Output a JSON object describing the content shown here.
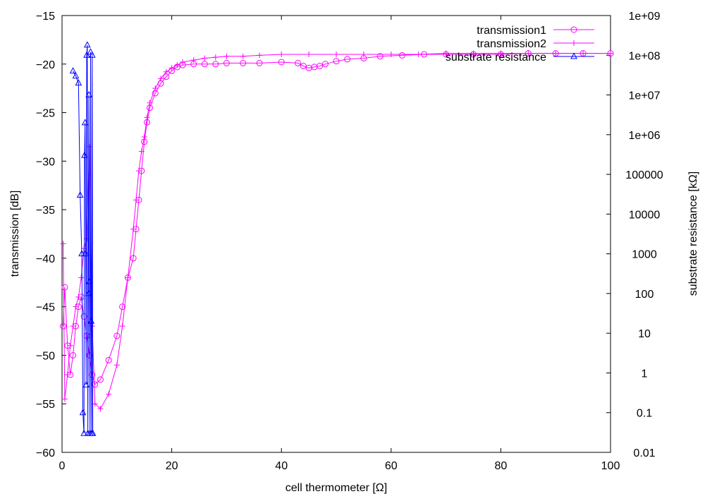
{
  "chart_data": {
    "type": "scatter",
    "title": "",
    "xlabel": "cell thermometer [Ω]",
    "ylabel": "transmission [dB]",
    "y2label": "substrate resistance [kΩ]",
    "xlim": [
      0,
      100
    ],
    "ylim": [
      -60,
      -15
    ],
    "y2lim": [
      0.01,
      1000000000
    ],
    "y2scale": "log",
    "grid": false,
    "legend_position": "top-right",
    "x_ticks": [
      0,
      20,
      40,
      60,
      80,
      100
    ],
    "x_tick_labels": [
      "0",
      "20",
      "40",
      "60",
      "80",
      "100"
    ],
    "y_ticks": [
      -60,
      -55,
      -50,
      -45,
      -40,
      -35,
      -30,
      -25,
      -20,
      -15
    ],
    "y_tick_labels": [
      "−60",
      "−55",
      "−50",
      "−45",
      "−40",
      "−35",
      "−30",
      "−25",
      "−20",
      "−15"
    ],
    "y2_ticks": [
      0.01,
      0.1,
      1,
      10,
      100,
      1000,
      10000,
      100000,
      1000000,
      10000000,
      100000000,
      1000000000
    ],
    "y2_tick_labels": [
      "0.01",
      "0.1",
      "1",
      "10",
      "100",
      "1000",
      "10000",
      "100000",
      "1e+06",
      "1e+07",
      "1e+08",
      "1e+09"
    ],
    "series": [
      {
        "name": "transmission1",
        "axis": "left",
        "marker": "circle",
        "color": "#ff00ff",
        "x": [
          0.2,
          0.5,
          1.0,
          1.5,
          2.0,
          2.5,
          3.0,
          3.5,
          4.0,
          4.5,
          5.0,
          5.5,
          6.0,
          7.0,
          8.5,
          10.0,
          11.0,
          12.0,
          13.0,
          13.5,
          14.0,
          14.5,
          15.0,
          15.5,
          16.0,
          17.0,
          18.0,
          19.0,
          20.0,
          21.0,
          22.0,
          24.0,
          26.0,
          28.0,
          30.0,
          33.0,
          36.0,
          40.0,
          43.0,
          44.0,
          45.0,
          46.0,
          47.0,
          48.0,
          50.0,
          52.0,
          55.0,
          58.0,
          62.0,
          66.0,
          70.0,
          75.0,
          80.0,
          85.0,
          90.0,
          95.0,
          100.0
        ],
        "y": [
          -47.0,
          -43.0,
          -49.0,
          -52.0,
          -50.0,
          -47.0,
          -45.0,
          -44.0,
          -46.0,
          -48.0,
          -50.0,
          -52.0,
          -53.0,
          -52.5,
          -50.5,
          -48.0,
          -45.0,
          -42.0,
          -40.0,
          -37.0,
          -34.0,
          -31.0,
          -28.0,
          -26.0,
          -24.5,
          -23.0,
          -22.0,
          -21.3,
          -20.7,
          -20.3,
          -20.1,
          -20.0,
          -20.0,
          -20.0,
          -19.9,
          -19.9,
          -19.9,
          -19.8,
          -19.9,
          -20.2,
          -20.4,
          -20.3,
          -20.2,
          -20.0,
          -19.7,
          -19.5,
          -19.4,
          -19.2,
          -19.1,
          -19.0,
          -19.0,
          -19.0,
          -19.0,
          -18.9,
          -18.9,
          -18.9,
          -18.9
        ]
      },
      {
        "name": "transmission2",
        "axis": "left",
        "marker": "plus",
        "color": "#ff00ff",
        "x": [
          0.2,
          0.5,
          1.0,
          1.5,
          2.0,
          2.5,
          3.0,
          3.5,
          4.0,
          4.5,
          5.0,
          5.5,
          6.0,
          7.0,
          8.5,
          10.0,
          11.0,
          12.0,
          13.0,
          13.5,
          14.0,
          14.5,
          15.0,
          15.5,
          16.0,
          17.0,
          18.0,
          19.0,
          20.0,
          21.0,
          22.0,
          24.0,
          26.0,
          28.0,
          30.0,
          33.0,
          36.0,
          40.0,
          45.0,
          50.0,
          55.0,
          60.0,
          65.0,
          70.0,
          75.0,
          80.0,
          85.0,
          90.0,
          95.0,
          100.0
        ],
        "y": [
          -38.5,
          -54.5,
          -52.0,
          -49.0,
          -47.0,
          -45.0,
          -44.0,
          -42.0,
          -39.0,
          -38.0,
          -28.5,
          -47.0,
          -55.0,
          -55.5,
          -54.0,
          -51.0,
          -47.0,
          -42.0,
          -37.0,
          -34.0,
          -31.0,
          -29.0,
          -27.5,
          -25.5,
          -24.0,
          -22.5,
          -21.5,
          -20.8,
          -20.4,
          -20.1,
          -19.8,
          -19.6,
          -19.4,
          -19.3,
          -19.2,
          -19.2,
          -19.1,
          -19.0,
          -19.0,
          -19.0,
          -19.0,
          -19.0,
          -19.0,
          -18.9,
          -18.9,
          -18.9,
          -18.9,
          -18.9,
          -18.9,
          -18.9
        ]
      },
      {
        "name": "substrate resistance",
        "axis": "right",
        "marker": "triangle",
        "color": "#0000ff",
        "x": [
          2.0,
          2.5,
          3.0,
          3.3,
          3.6,
          3.8,
          4.0,
          4.1,
          4.2,
          4.3,
          4.4,
          4.5,
          4.6,
          4.7,
          4.8,
          4.9,
          5.0,
          5.1,
          5.2,
          5.3,
          5.4,
          5.5,
          5.6
        ],
        "y": [
          40000000,
          30000000,
          20000000,
          30000,
          1000,
          0.1,
          0.03,
          300000,
          2000000,
          1000,
          0.5,
          100000000,
          180000000,
          0.03,
          100,
          10000000,
          200,
          0.03,
          120000000,
          20,
          0.03,
          100000000,
          0.03
        ]
      }
    ]
  }
}
